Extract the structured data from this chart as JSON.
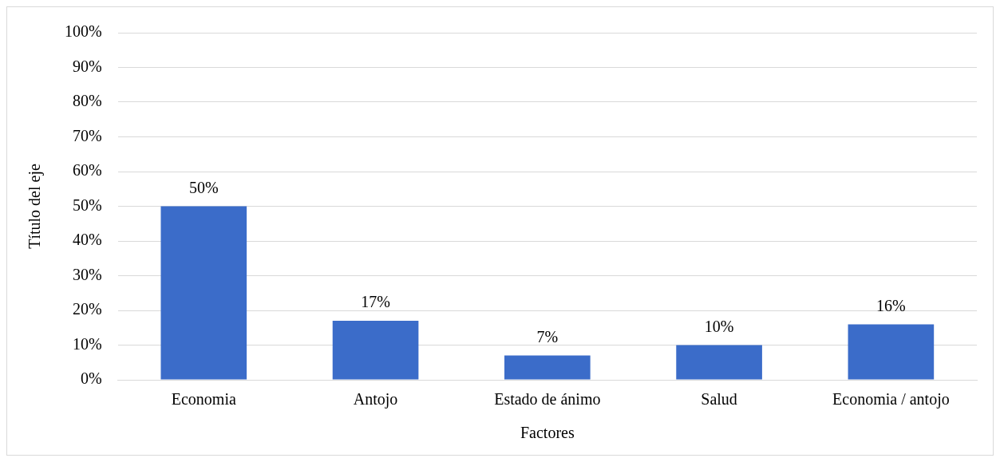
{
  "chart_data": {
    "type": "bar",
    "xlabel": "Factores",
    "ylabel": "Título del eje",
    "categories": [
      "Economia",
      "Antojo",
      "Estado de ánimo",
      "Salud",
      "Economia / antojo"
    ],
    "values": [
      50,
      17,
      7,
      10,
      16
    ],
    "color": "#3b6cc9",
    "value_labels": [
      "50%",
      "17%",
      "7%",
      "10%",
      "16%"
    ],
    "ylim": [
      0,
      100
    ],
    "yticks": [
      {
        "value": 0,
        "label": "0%"
      },
      {
        "value": 10,
        "label": "10%"
      },
      {
        "value": 20,
        "label": "20%"
      },
      {
        "value": 30,
        "label": "30%"
      },
      {
        "value": 40,
        "label": "40%"
      },
      {
        "value": 50,
        "label": "50%"
      },
      {
        "value": 60,
        "label": "60%"
      },
      {
        "value": 70,
        "label": "70%"
      },
      {
        "value": 80,
        "label": "80%"
      },
      {
        "value": 90,
        "label": "90%"
      },
      {
        "value": 100,
        "label": "100%"
      }
    ],
    "grid": "y",
    "legend": false
  }
}
